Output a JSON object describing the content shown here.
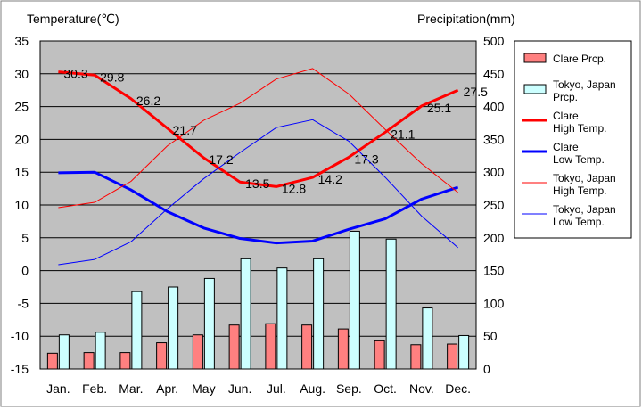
{
  "chart_data": {
    "type": "bar",
    "title": "",
    "left_axis_label": "Temperature(℃)",
    "right_axis_label": "Precipitation(mm)",
    "categories": [
      "Jan.",
      "Feb.",
      "Mar.",
      "Apr.",
      "May",
      "Jun.",
      "Jul.",
      "Aug.",
      "Sep.",
      "Oct.",
      "Nov.",
      "Dec."
    ],
    "left_axis": {
      "min": -15,
      "max": 35,
      "ticks": [
        "35",
        "30",
        "25",
        "20",
        "15",
        "10",
        "5",
        "0",
        "-5",
        "-10",
        "-15"
      ]
    },
    "right_axis": {
      "min": 0,
      "max": 500,
      "ticks": [
        "500",
        "450",
        "400",
        "350",
        "300",
        "250",
        "200",
        "150",
        "100",
        "50",
        "0"
      ]
    },
    "bar_series": [
      {
        "name": "Clare Prcp.",
        "legend_lines": [
          "Clare Prcp."
        ],
        "color": "#ff8080",
        "values": [
          24,
          25,
          25,
          40,
          52,
          67,
          69,
          67,
          61,
          43,
          37,
          38
        ]
      },
      {
        "name": "Tokyo, Japan Prcp.",
        "legend_lines": [
          "Tokyo, Japan",
          "Prcp."
        ],
        "color": "#ccffff",
        "values": [
          52,
          56,
          118,
          125,
          138,
          168,
          154,
          168,
          210,
          198,
          93,
          51
        ]
      }
    ],
    "line_series": [
      {
        "name": "Clare High Temp.",
        "legend_lines": [
          "Clare",
          "High Temp."
        ],
        "color": "#ff0000",
        "width": 3,
        "values": [
          30.3,
          29.8,
          26.2,
          21.7,
          17.2,
          13.5,
          12.8,
          14.2,
          17.3,
          21.1,
          25.1,
          27.5
        ],
        "labels": [
          "30.3",
          "29.8",
          "26.2",
          "21.7",
          "17.2",
          "13.5",
          "12.8",
          "14.2",
          "17.3",
          "21.1",
          "25.1",
          "27.5"
        ]
      },
      {
        "name": "Clare Low Temp.",
        "legend_lines": [
          "Clare",
          "Low Temp."
        ],
        "color": "#0000ff",
        "width": 3,
        "values": [
          14.9,
          15.0,
          12.3,
          9.0,
          6.5,
          4.9,
          4.2,
          4.5,
          6.3,
          7.9,
          10.9,
          12.7
        ]
      },
      {
        "name": "Tokyo, Japan High Temp.",
        "legend_lines": [
          "Tokyo, Japan",
          "High Temp."
        ],
        "color": "#ff0000",
        "width": 1,
        "values": [
          9.6,
          10.4,
          13.6,
          19.0,
          22.9,
          25.5,
          29.2,
          30.8,
          26.9,
          21.5,
          16.3,
          11.9
        ]
      },
      {
        "name": "Tokyo, Japan Low Temp.",
        "legend_lines": [
          "Tokyo, Japan",
          "Low Temp."
        ],
        "color": "#0000ff",
        "width": 1,
        "values": [
          0.9,
          1.7,
          4.4,
          9.4,
          14.0,
          18.0,
          21.8,
          23.0,
          19.7,
          14.2,
          8.3,
          3.5
        ]
      }
    ],
    "grid": true
  }
}
